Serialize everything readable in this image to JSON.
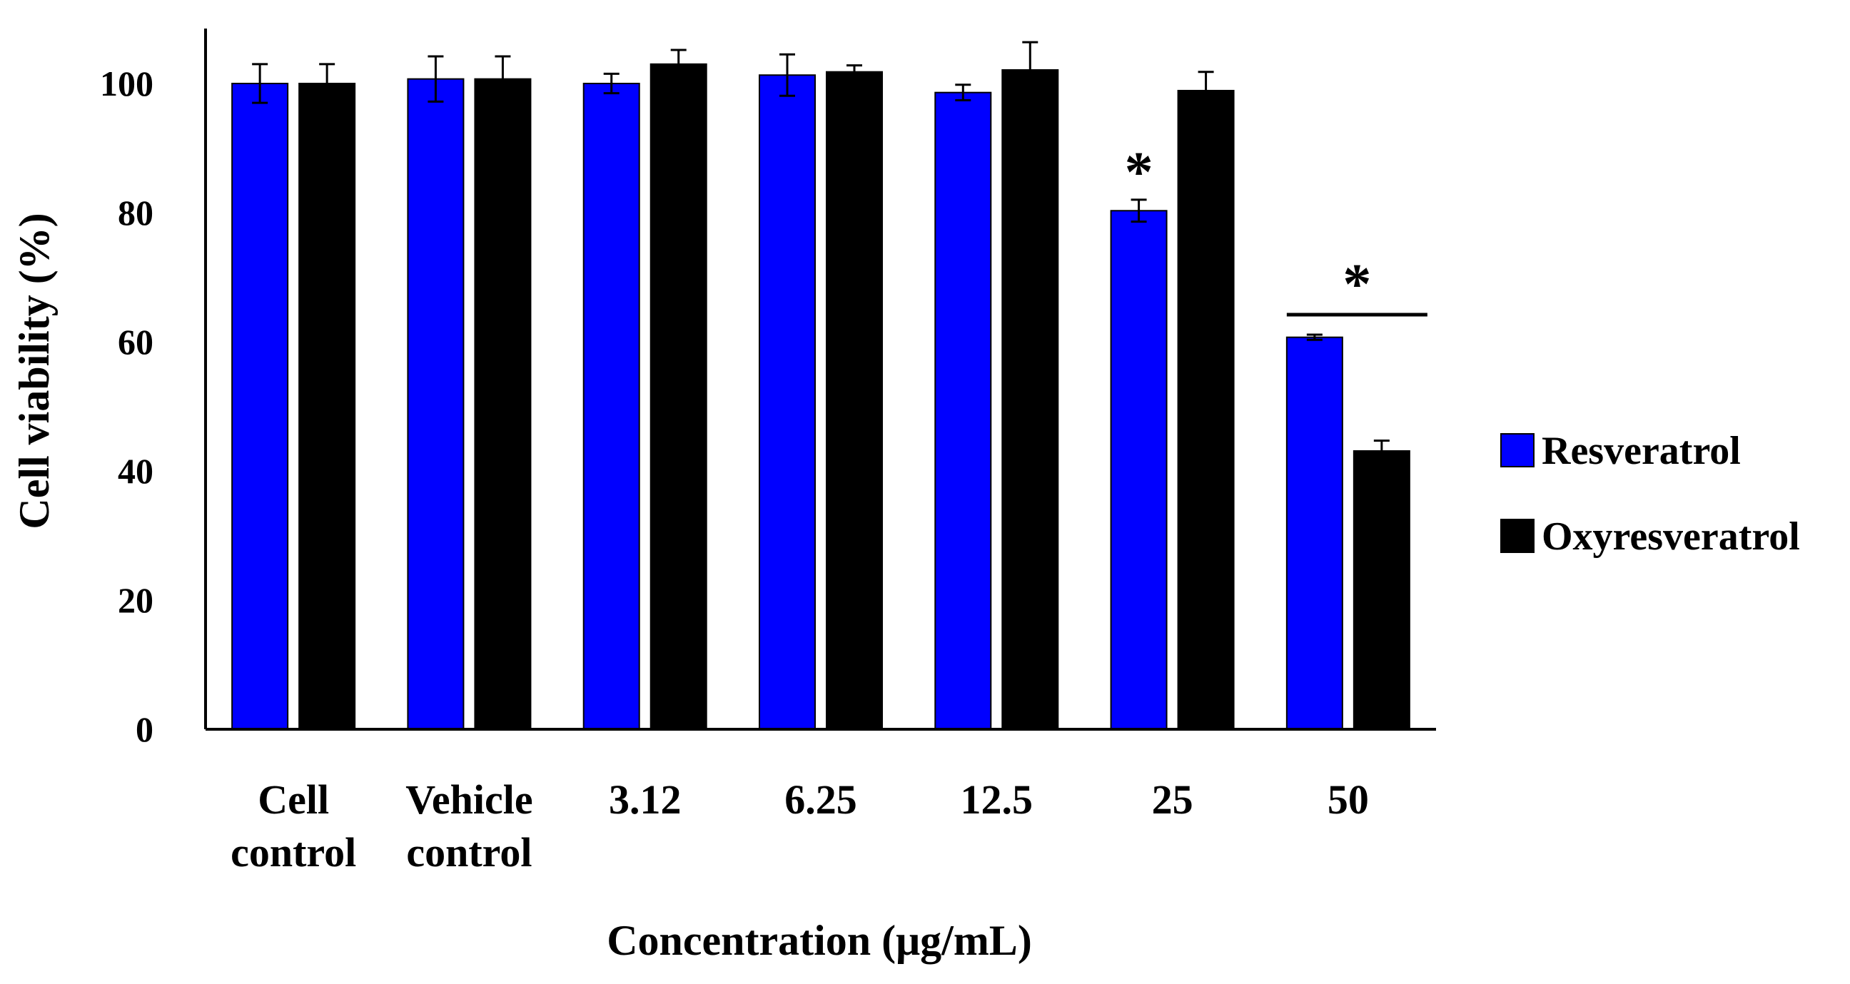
{
  "chart_data": {
    "type": "bar",
    "title": "",
    "xlabel": "Concentration (μg/mL)",
    "ylabel": "Cell viability (%)",
    "ylim": [
      0,
      110
    ],
    "yticks": [
      "0",
      "20",
      "40",
      "60",
      "80",
      "100"
    ],
    "grid": false,
    "legend_position": "right",
    "categories": [
      [
        "Cell",
        "control"
      ],
      [
        "Vehicle",
        "control"
      ],
      [
        "3.12"
      ],
      [
        "6.25"
      ],
      [
        "12.5"
      ],
      [
        "25"
      ],
      [
        "50"
      ]
    ],
    "series": [
      {
        "name": "Resveratrol",
        "color": "#0000ff",
        "values": [
          100,
          100.7,
          100,
          101.3,
          98.6,
          80.3,
          60.7
        ],
        "errors": [
          3.0,
          3.5,
          1.5,
          3.2,
          1.2,
          1.7,
          0.4
        ]
      },
      {
        "name": "Oxyresveratrol",
        "color": "#000000",
        "values": [
          100,
          100.7,
          103,
          101.8,
          102.1,
          98.9,
          43.1
        ],
        "errors": [
          3.0,
          3.5,
          2.2,
          1.0,
          4.3,
          2.9,
          1.6
        ]
      }
    ],
    "significance": [
      {
        "category_index": 5,
        "marker": "*",
        "span": "single"
      },
      {
        "category_index": 6,
        "marker": "*",
        "span": "both"
      }
    ]
  }
}
